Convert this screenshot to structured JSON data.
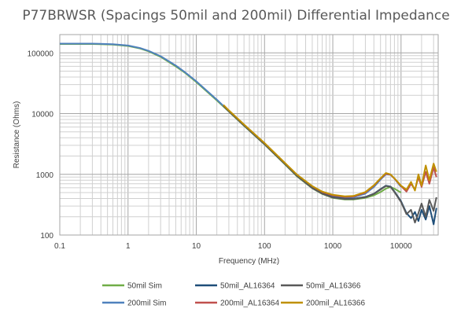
{
  "chart_data": {
    "type": "line",
    "title": "P77BRWSR (Spacings 50mil and 200mil) Differential Impedance",
    "xlabel": "Frequency (MHz)",
    "ylabel": "Resistance (Ohms)",
    "xscale": "log",
    "yscale": "log",
    "xlim": [
      0.1,
      35000
    ],
    "ylim": [
      100,
      200000
    ],
    "x_ticks": [
      0.1,
      1,
      10,
      100,
      1000,
      10000
    ],
    "x_tick_labels": [
      "0.1",
      "1",
      "10",
      "100",
      "1000",
      "10000"
    ],
    "y_ticks": [
      100,
      1000,
      10000,
      100000
    ],
    "y_tick_labels": [
      "100",
      "1000",
      "10000",
      "100000"
    ],
    "grid": true,
    "legend_position": "bottom",
    "series": [
      {
        "name": "50mil Sim",
        "color": "#70ad47",
        "x": [
          0.1,
          0.3,
          0.6,
          1,
          1.5,
          2,
          3,
          5,
          7,
          10,
          20,
          30,
          50,
          100,
          200,
          300,
          500,
          700,
          1000,
          1500,
          2000,
          3000,
          4000,
          5000,
          6000,
          7000,
          8000,
          10000
        ],
        "y": [
          140000,
          140000,
          137000,
          130000,
          118000,
          106000,
          86000,
          60000,
          46000,
          33000,
          16500,
          10800,
          6300,
          3100,
          1450,
          920,
          590,
          475,
          410,
          385,
          385,
          410,
          450,
          510,
          580,
          620,
          580,
          500
        ]
      },
      {
        "name": "200mil Sim",
        "color": "#4f81bd",
        "x": [
          0.1,
          0.3,
          0.6,
          1,
          1.5,
          2,
          3,
          5,
          7,
          10,
          20,
          30,
          50,
          100,
          200,
          300,
          500,
          700,
          1000,
          1500,
          2000,
          3000,
          4000,
          5000,
          6000,
          7000,
          8000,
          10000
        ],
        "y": [
          142000,
          142000,
          139000,
          132000,
          120000,
          108000,
          88000,
          62000,
          47000,
          34000,
          17000,
          11000,
          6450,
          3200,
          1500,
          960,
          620,
          500,
          440,
          415,
          420,
          480,
          620,
          820,
          1000,
          980,
          850,
          620
        ]
      },
      {
        "name": "50mil_AL16364",
        "color": "#1f4e79",
        "x": [
          25,
          30,
          50,
          100,
          200,
          300,
          500,
          700,
          1000,
          1500,
          2000,
          3000,
          4000,
          5000,
          6000,
          7000,
          8000,
          10000,
          12000,
          14000,
          16000,
          18000,
          20000,
          23000,
          26000,
          30000,
          33000
        ],
        "y": [
          13500,
          11000,
          6400,
          3150,
          1480,
          940,
          600,
          485,
          420,
          395,
          395,
          425,
          480,
          570,
          650,
          630,
          520,
          360,
          230,
          190,
          240,
          170,
          260,
          180,
          300,
          150,
          280
        ]
      },
      {
        "name": "200mil_AL16364",
        "color": "#c0504d",
        "x": [
          25,
          30,
          50,
          100,
          200,
          300,
          500,
          700,
          1000,
          1500,
          2000,
          3000,
          4000,
          5000,
          6000,
          7000,
          8000,
          10000,
          12000,
          14000,
          16000,
          18000,
          20000,
          23000,
          26000,
          30000,
          33000
        ],
        "y": [
          13800,
          11200,
          6550,
          3250,
          1520,
          975,
          630,
          510,
          450,
          425,
          430,
          500,
          650,
          850,
          1020,
          990,
          850,
          640,
          520,
          700,
          560,
          900,
          620,
          1100,
          700,
          1300,
          900
        ]
      },
      {
        "name": "50mil_AL16366",
        "color": "#595959",
        "x": [
          25,
          30,
          50,
          100,
          200,
          300,
          500,
          700,
          1000,
          1500,
          2000,
          3000,
          4000,
          5000,
          6000,
          7000,
          8000,
          10000,
          12000,
          14000,
          16000,
          18000,
          20000,
          23000,
          26000,
          30000,
          33000
        ],
        "y": [
          13400,
          10900,
          6350,
          3130,
          1470,
          935,
          595,
          480,
          415,
          392,
          392,
          420,
          475,
          560,
          640,
          620,
          510,
          350,
          220,
          260,
          160,
          230,
          330,
          200,
          380,
          250,
          420
        ]
      },
      {
        "name": "200mil_AL16366",
        "color": "#bf9000",
        "x": [
          25,
          30,
          50,
          100,
          200,
          300,
          500,
          700,
          1000,
          1500,
          2000,
          3000,
          4000,
          5000,
          6000,
          7000,
          8000,
          10000,
          12000,
          14000,
          16000,
          18000,
          20000,
          23000,
          26000,
          30000,
          33000
        ],
        "y": [
          13900,
          11300,
          6600,
          3270,
          1530,
          985,
          640,
          520,
          460,
          435,
          440,
          510,
          660,
          860,
          1050,
          1000,
          860,
          650,
          560,
          750,
          540,
          1000,
          650,
          1400,
          800,
          1500,
          1100
        ]
      }
    ]
  }
}
